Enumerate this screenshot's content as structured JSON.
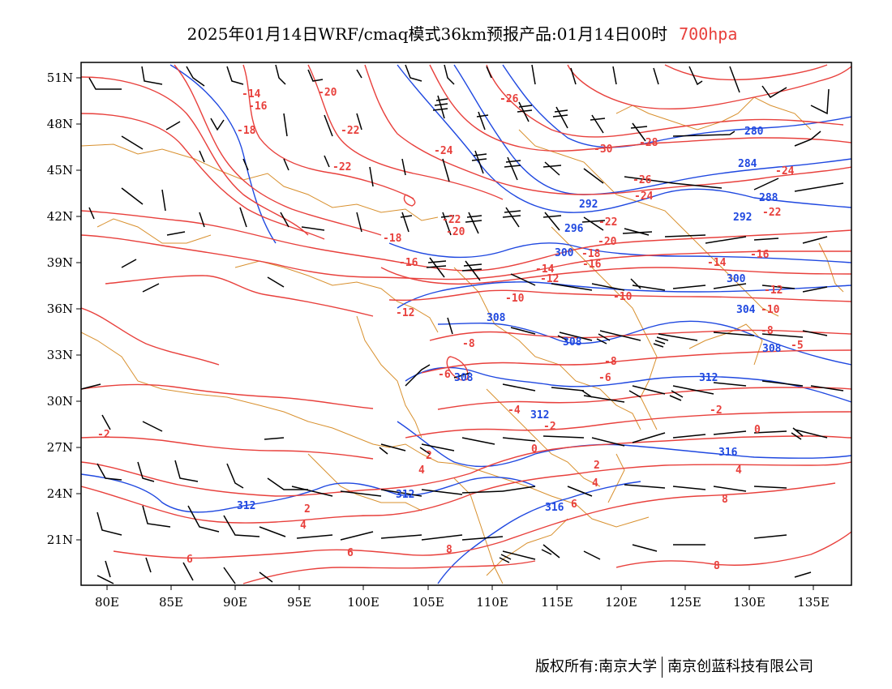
{
  "title": {
    "main": "2025年01月14日WRF/cmaq模式36km预报产品:01月14日00时",
    "level": "700hpa"
  },
  "colors": {
    "temperature": "#e8403c",
    "height": "#1f48e0",
    "border": "#d8902e",
    "wind": "#000000"
  },
  "axes": {
    "x_ticks": [
      "80E",
      "85E",
      "90E",
      "95E",
      "100E",
      "105E",
      "110E",
      "115E",
      "120E",
      "125E",
      "130E",
      "135E"
    ],
    "y_ticks": [
      "51N",
      "48N",
      "45N",
      "42N",
      "39N",
      "36N",
      "33N",
      "30N",
      "27N",
      "24N",
      "21N"
    ]
  },
  "temperature_labels": [
    "-14",
    "-16",
    "-18",
    "-20",
    "-22",
    "-22",
    "-22",
    "-26",
    "-24",
    "-30",
    "-28",
    "-26",
    "-24",
    "-24",
    "-22",
    "-22",
    "-20",
    "-20",
    "-18",
    "-18",
    "-16",
    "-16",
    "-16",
    "-14",
    "-14",
    "-12",
    "-12",
    "-12",
    "-10",
    "-10",
    "-10",
    "-8",
    "-8",
    "-8",
    "-6",
    "-6",
    "-5",
    "-4",
    "-2",
    "-2",
    "-2",
    "0",
    "0",
    "2",
    "2",
    "2",
    "4",
    "4",
    "4",
    "4",
    "6",
    "6",
    "6",
    "8",
    "8",
    "8"
  ],
  "height_labels": [
    "280",
    "284",
    "288",
    "292",
    "292",
    "296",
    "300",
    "300",
    "304",
    "308",
    "308",
    "308",
    "308",
    "312",
    "312",
    "312",
    "312",
    "316",
    "316"
  ],
  "footer": {
    "copyright": "版权所有:南京大学",
    "company": "南京创蓝科技有限公司"
  }
}
